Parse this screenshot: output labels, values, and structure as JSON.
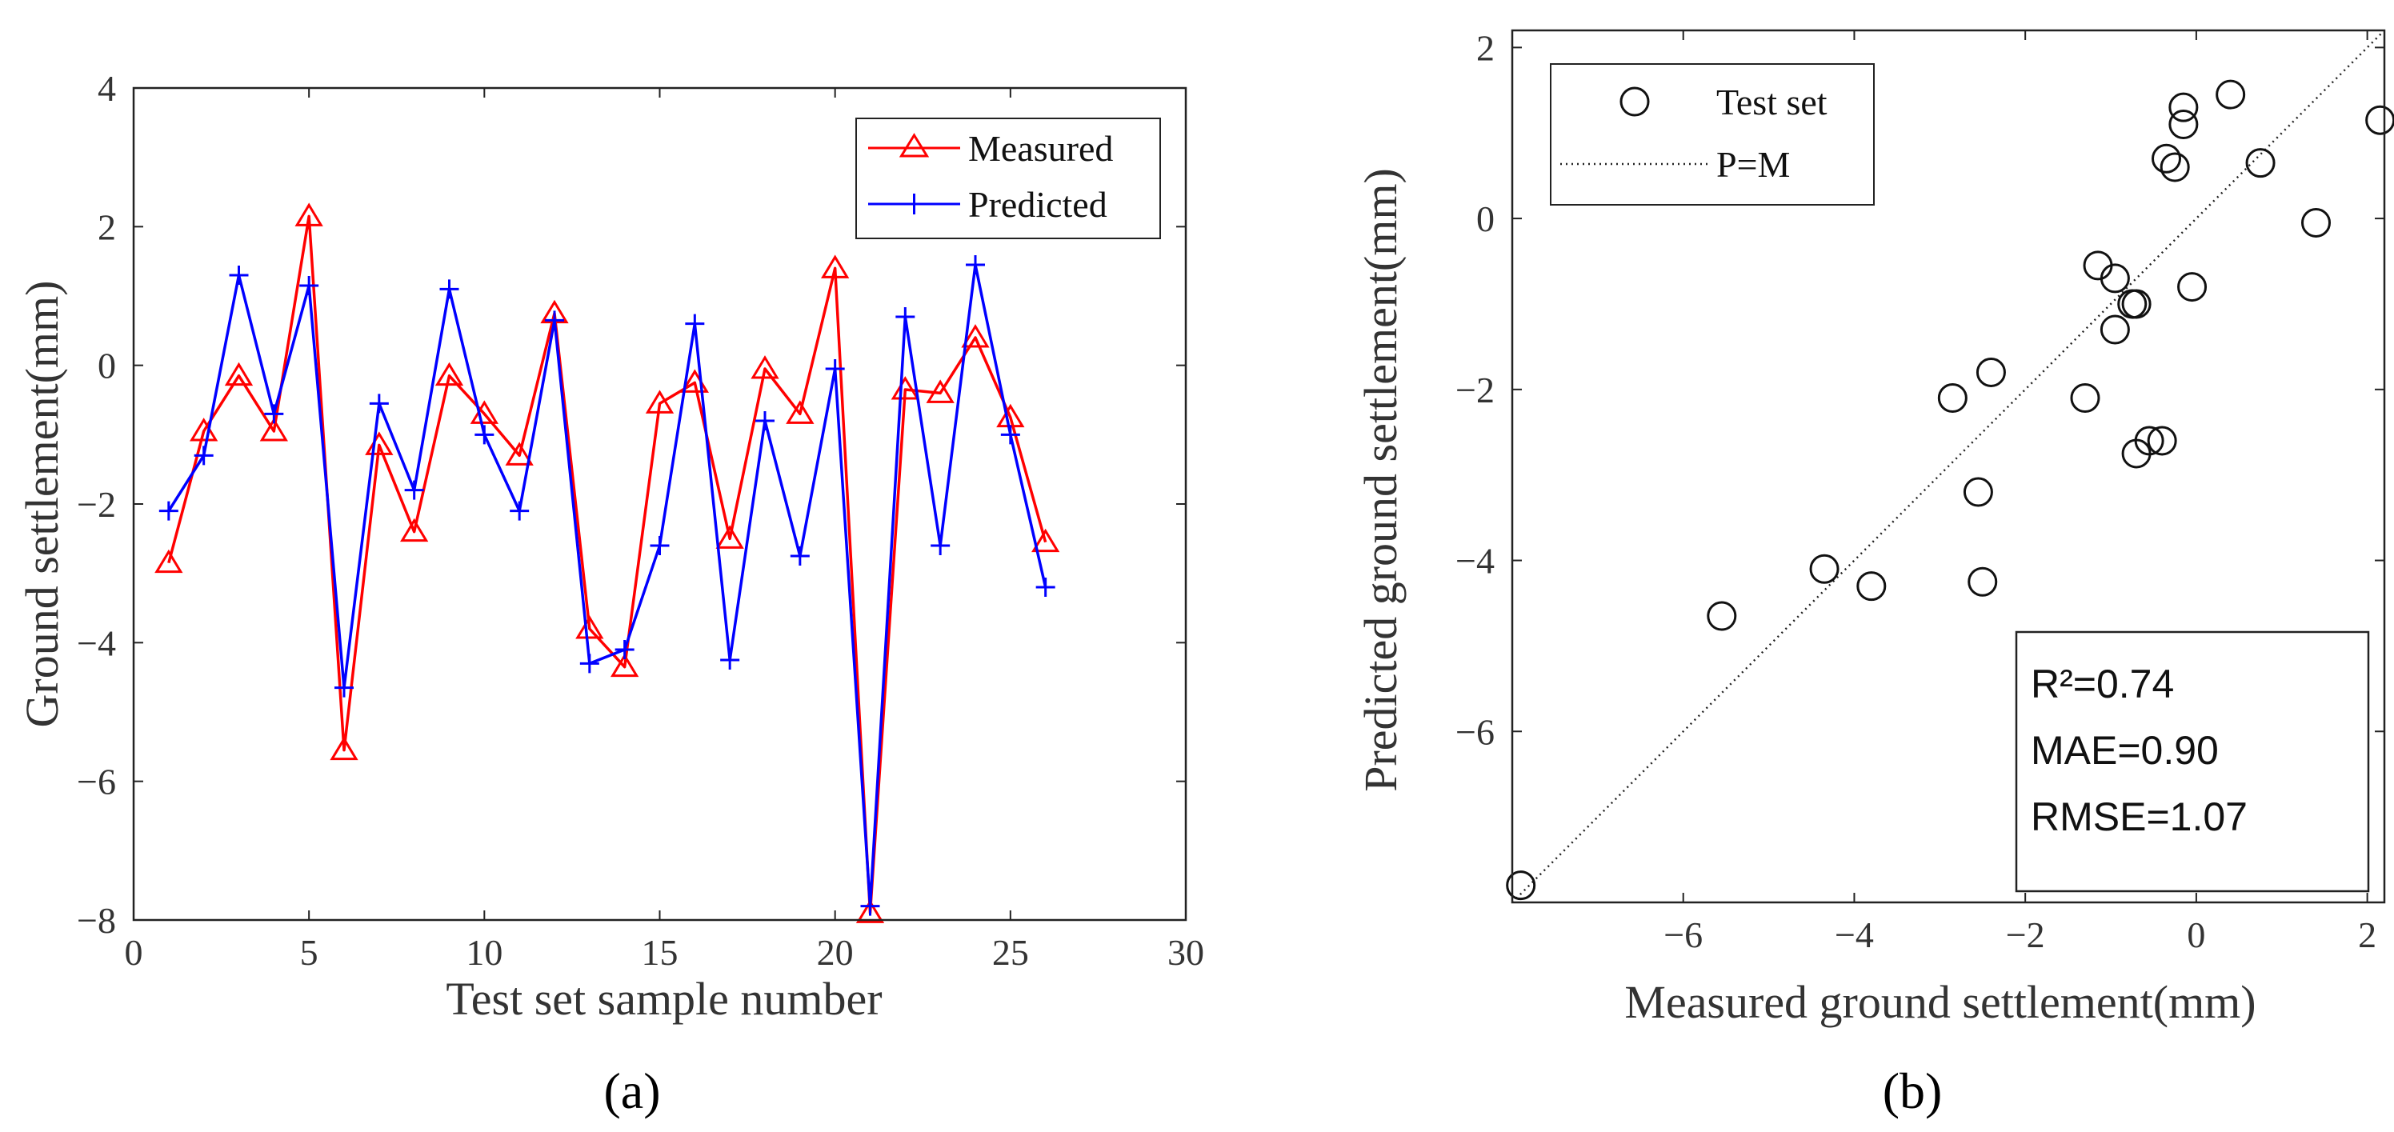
{
  "chart_data": [
    {
      "type": "line",
      "panel_label": "a",
      "xlabel": "Test set sample number",
      "ylabel": "Ground settlement(mm)",
      "xlim": [
        0,
        30
      ],
      "ylim": [
        -8,
        4
      ],
      "xticks": [
        0,
        5,
        10,
        15,
        20,
        25,
        30
      ],
      "yticks": [
        -8,
        -6,
        -4,
        -2,
        0,
        2,
        4
      ],
      "x": [
        1,
        2,
        3,
        4,
        5,
        6,
        7,
        8,
        9,
        10,
        11,
        12,
        13,
        14,
        15,
        16,
        17,
        18,
        19,
        20,
        21,
        22,
        23,
        24,
        25,
        26
      ],
      "series": [
        {
          "name": "Measured",
          "color": "#ff0000",
          "marker": "triangle",
          "values": [
            -2.85,
            -0.95,
            -0.15,
            -0.95,
            2.15,
            -5.55,
            -1.15,
            -2.4,
            -0.15,
            -0.7,
            -1.3,
            0.75,
            -3.8,
            -4.35,
            -0.55,
            -0.25,
            -2.5,
            -0.05,
            -0.7,
            1.4,
            -7.9,
            -0.35,
            -0.4,
            0.4,
            -0.75,
            -2.55
          ]
        },
        {
          "name": "Predicted",
          "color": "#0000ff",
          "marker": "plus",
          "values": [
            -2.1,
            -1.3,
            1.3,
            -0.7,
            1.15,
            -4.65,
            -0.55,
            -1.8,
            1.1,
            -1.0,
            -2.1,
            0.65,
            -4.3,
            -4.1,
            -2.6,
            0.6,
            -4.25,
            -0.8,
            -2.75,
            -0.05,
            -7.8,
            0.7,
            -2.6,
            1.45,
            -1.0,
            -3.2
          ]
        }
      ]
    },
    {
      "type": "scatter",
      "panel_label": "b",
      "xlabel": "Measured ground settlement(mm)",
      "ylabel": "Predicted ground settlement(mm)",
      "xlim": [
        -8,
        2.2
      ],
      "ylim": [
        -8,
        2.2
      ],
      "xticks": [
        -6,
        -4,
        -2,
        0,
        2
      ],
      "yticks": [
        -6,
        -4,
        -2,
        0,
        2
      ],
      "series": [
        {
          "name": "Test set",
          "marker": "circle",
          "points": [
            [
              -7.9,
              -7.8
            ],
            [
              -5.55,
              -4.65
            ],
            [
              -4.35,
              -4.1
            ],
            [
              -3.8,
              -4.3
            ],
            [
              -2.85,
              -2.1
            ],
            [
              -2.55,
              -3.2
            ],
            [
              -2.5,
              -4.25
            ],
            [
              -2.4,
              -1.8
            ],
            [
              -1.3,
              -2.1
            ],
            [
              -1.15,
              -0.55
            ],
            [
              -0.95,
              -1.3
            ],
            [
              -0.95,
              -0.7
            ],
            [
              -0.75,
              -1.0
            ],
            [
              -0.7,
              -1.0
            ],
            [
              -0.7,
              -2.75
            ],
            [
              -0.55,
              -2.6
            ],
            [
              -0.4,
              -2.6
            ],
            [
              -0.35,
              0.7
            ],
            [
              -0.25,
              0.6
            ],
            [
              -0.15,
              1.3
            ],
            [
              -0.15,
              1.1
            ],
            [
              -0.05,
              -0.8
            ],
            [
              0.4,
              1.45
            ],
            [
              0.75,
              0.65
            ],
            [
              1.4,
              -0.05
            ],
            [
              2.15,
              1.15
            ]
          ]
        },
        {
          "name": "P=M",
          "line": "dotted",
          "from": [
            -8,
            -8
          ],
          "to": [
            2.2,
            2.2
          ]
        }
      ],
      "stats": [
        "R²=0.74",
        "MAE=0.90",
        "RMSE=1.07"
      ]
    }
  ],
  "captions": {
    "a": "(a)",
    "b": "(b)"
  }
}
